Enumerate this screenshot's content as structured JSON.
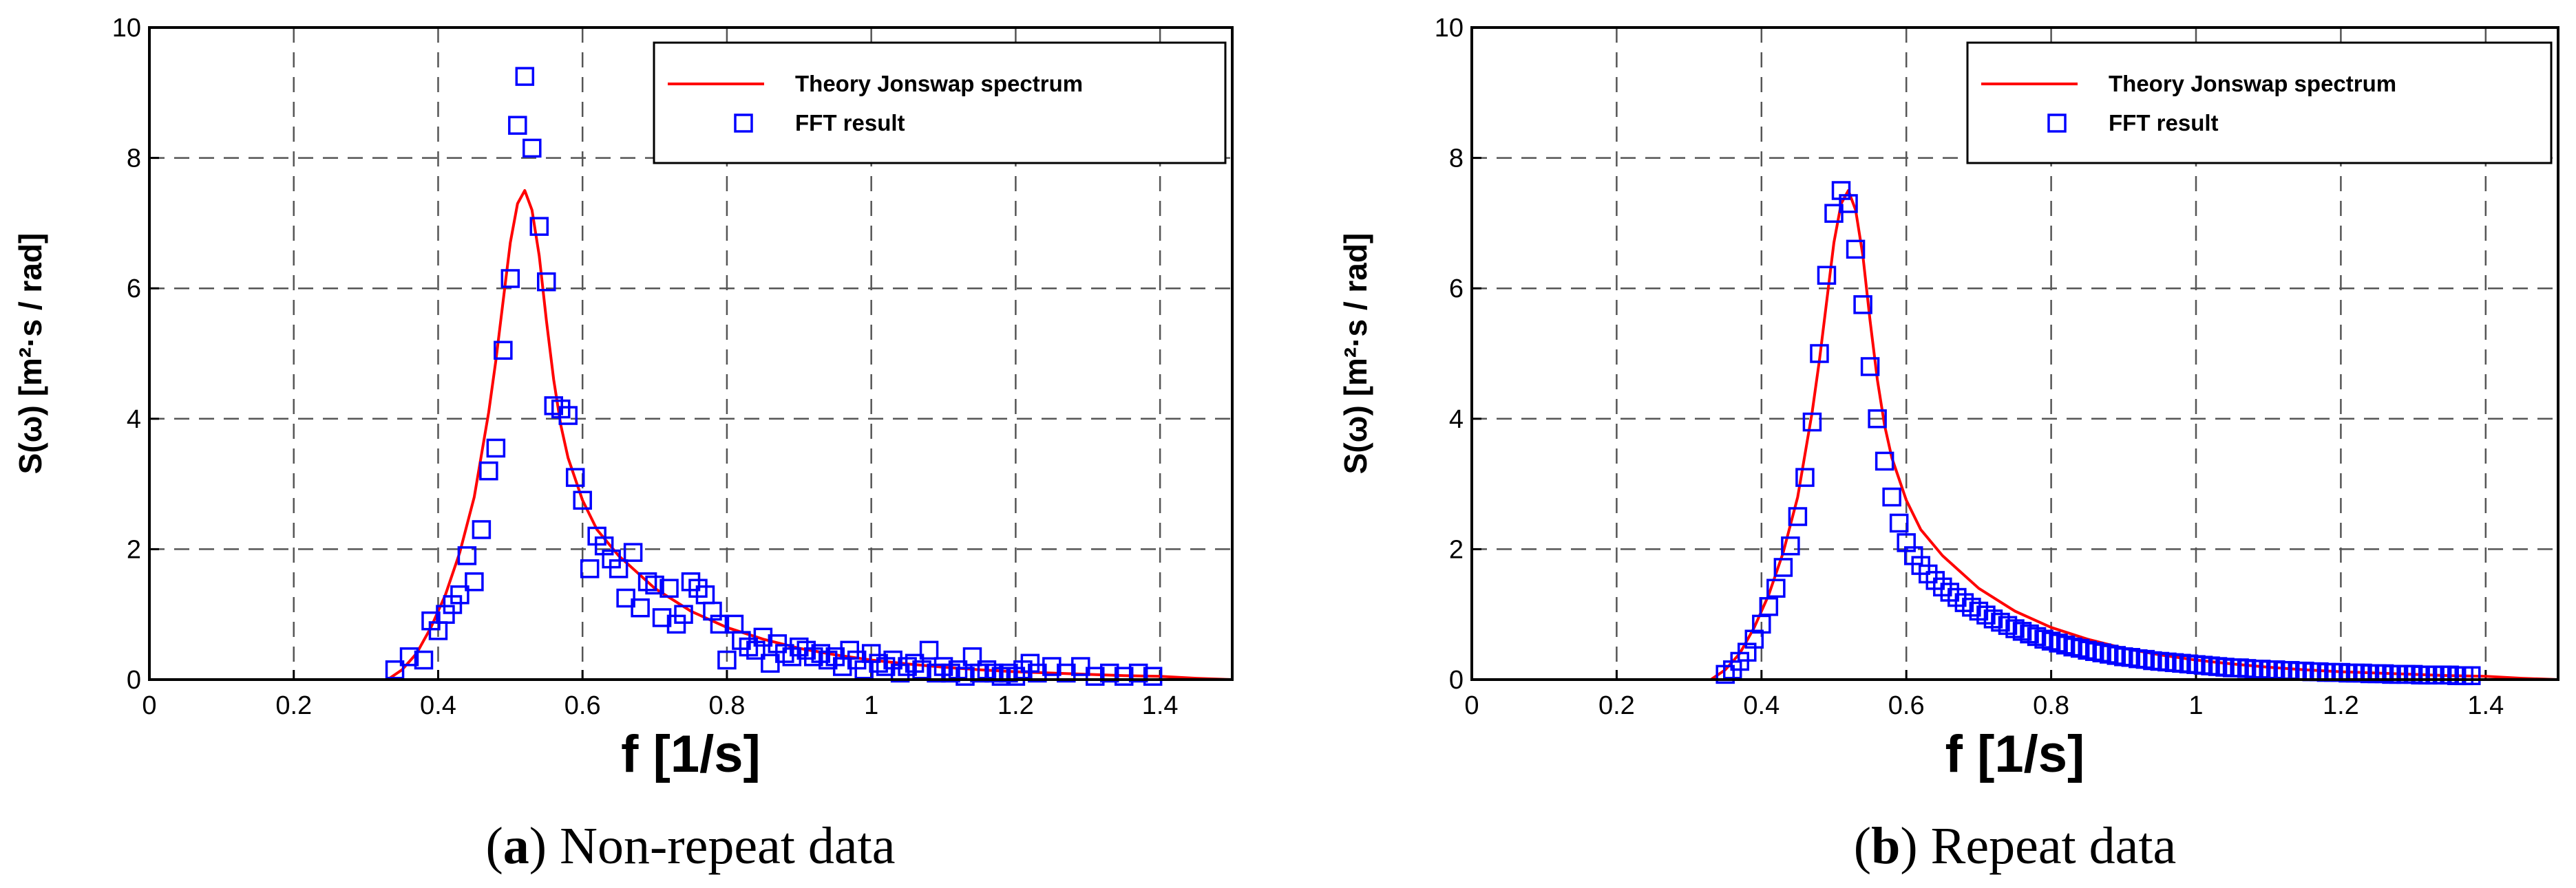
{
  "chart_data": [
    {
      "type": "line+scatter",
      "caption_letter": "a",
      "caption_text": " Non-repeat data",
      "xlabel": "f [1/s]",
      "ylabel": "S(ω) [m²·s / rad]",
      "xlim": [
        0,
        1.5
      ],
      "ylim": [
        0,
        10
      ],
      "xticks": [
        0,
        0.2,
        0.4,
        0.6,
        0.8,
        1,
        1.2,
        1.4
      ],
      "xtick_labels": [
        "0",
        "0.2",
        "0.4",
        "0.6",
        "0.8",
        "1",
        "1.2",
        "1.4"
      ],
      "yticks": [
        0,
        2,
        4,
        6,
        8,
        10
      ],
      "ytick_labels": [
        "0",
        "2",
        "4",
        "6",
        "8",
        "10"
      ],
      "grid": true,
      "legend_position": "top-right",
      "series": [
        {
          "name": "Theory Jonswap spectrum",
          "type": "line",
          "color": "#ff0000",
          "x": [
            0.33,
            0.35,
            0.37,
            0.39,
            0.41,
            0.43,
            0.45,
            0.47,
            0.48,
            0.49,
            0.5,
            0.51,
            0.52,
            0.53,
            0.54,
            0.55,
            0.56,
            0.57,
            0.58,
            0.6,
            0.62,
            0.65,
            0.7,
            0.75,
            0.8,
            0.85,
            0.9,
            0.95,
            1.0,
            1.05,
            1.1,
            1.15,
            1.2,
            1.25,
            1.3,
            1.35,
            1.4,
            1.45,
            1.5
          ],
          "y": [
            0.0,
            0.15,
            0.4,
            0.8,
            1.3,
            1.95,
            2.8,
            4.1,
            4.9,
            5.8,
            6.7,
            7.3,
            7.5,
            7.2,
            6.5,
            5.5,
            4.6,
            3.9,
            3.4,
            2.75,
            2.3,
            1.9,
            1.4,
            1.05,
            0.8,
            0.62,
            0.48,
            0.38,
            0.3,
            0.24,
            0.19,
            0.15,
            0.12,
            0.1,
            0.08,
            0.06,
            0.05,
            0.02,
            0.0
          ]
        },
        {
          "name": "FFT result",
          "type": "scatter",
          "color": "#0000ff",
          "x": [
            0.34,
            0.36,
            0.38,
            0.39,
            0.4,
            0.41,
            0.42,
            0.43,
            0.44,
            0.45,
            0.46,
            0.47,
            0.48,
            0.49,
            0.5,
            0.51,
            0.52,
            0.53,
            0.54,
            0.55,
            0.56,
            0.57,
            0.58,
            0.59,
            0.6,
            0.61,
            0.62,
            0.63,
            0.64,
            0.65,
            0.66,
            0.67,
            0.68,
            0.69,
            0.7,
            0.71,
            0.72,
            0.73,
            0.74,
            0.75,
            0.76,
            0.77,
            0.78,
            0.79,
            0.8,
            0.81,
            0.82,
            0.83,
            0.84,
            0.85,
            0.86,
            0.87,
            0.88,
            0.89,
            0.9,
            0.91,
            0.92,
            0.93,
            0.94,
            0.95,
            0.96,
            0.97,
            0.98,
            0.99,
            1.0,
            1.01,
            1.02,
            1.03,
            1.04,
            1.05,
            1.06,
            1.07,
            1.08,
            1.09,
            1.1,
            1.11,
            1.12,
            1.13,
            1.14,
            1.15,
            1.16,
            1.17,
            1.18,
            1.19,
            1.2,
            1.21,
            1.22,
            1.23,
            1.25,
            1.27,
            1.29,
            1.31,
            1.33,
            1.35,
            1.37,
            1.39
          ],
          "y": [
            0.15,
            0.35,
            0.3,
            0.9,
            0.75,
            1.0,
            1.15,
            1.3,
            1.9,
            1.5,
            2.3,
            3.2,
            3.55,
            5.05,
            6.15,
            8.5,
            9.25,
            8.15,
            6.95,
            6.1,
            4.2,
            4.15,
            4.05,
            3.1,
            2.75,
            1.7,
            2.2,
            2.05,
            1.85,
            1.7,
            1.25,
            1.95,
            1.1,
            1.5,
            1.45,
            0.95,
            1.4,
            0.85,
            1.0,
            1.5,
            1.4,
            1.3,
            1.05,
            0.85,
            0.3,
            0.85,
            0.6,
            0.5,
            0.45,
            0.65,
            0.25,
            0.55,
            0.4,
            0.35,
            0.5,
            0.45,
            0.35,
            0.4,
            0.3,
            0.35,
            0.2,
            0.45,
            0.3,
            0.15,
            0.4,
            0.25,
            0.2,
            0.3,
            0.1,
            0.2,
            0.25,
            0.15,
            0.45,
            0.1,
            0.2,
            0.1,
            0.15,
            0.05,
            0.35,
            0.1,
            0.15,
            0.1,
            0.05,
            0.1,
            0.05,
            0.15,
            0.25,
            0.1,
            0.2,
            0.1,
            0.2,
            0.05,
            0.1,
            0.05,
            0.1,
            0.05
          ]
        }
      ]
    },
    {
      "type": "line+scatter",
      "caption_letter": "b",
      "caption_text": " Repeat data",
      "xlabel": "f [1/s]",
      "ylabel": "S(ω) [m²·s / rad]",
      "xlim": [
        0,
        1.5
      ],
      "ylim": [
        0,
        10
      ],
      "xticks": [
        0,
        0.2,
        0.4,
        0.6,
        0.8,
        1,
        1.2,
        1.4
      ],
      "xtick_labels": [
        "0",
        "0.2",
        "0.4",
        "0.6",
        "0.8",
        "1",
        "1.2",
        "1.4"
      ],
      "yticks": [
        0,
        2,
        4,
        6,
        8,
        10
      ],
      "ytick_labels": [
        "0",
        "2",
        "4",
        "6",
        "8",
        "10"
      ],
      "grid": true,
      "legend_position": "top-right",
      "series": [
        {
          "name": "Theory Jonswap spectrum",
          "type": "line",
          "color": "#ff0000",
          "x": [
            0.33,
            0.35,
            0.37,
            0.39,
            0.41,
            0.43,
            0.45,
            0.47,
            0.48,
            0.49,
            0.5,
            0.51,
            0.52,
            0.53,
            0.54,
            0.55,
            0.56,
            0.57,
            0.58,
            0.6,
            0.62,
            0.65,
            0.7,
            0.75,
            0.8,
            0.85,
            0.9,
            0.95,
            1.0,
            1.05,
            1.1,
            1.15,
            1.2,
            1.25,
            1.3,
            1.35,
            1.4,
            1.45,
            1.5
          ],
          "y": [
            0.0,
            0.15,
            0.4,
            0.8,
            1.3,
            1.95,
            2.8,
            4.1,
            4.9,
            5.8,
            6.7,
            7.3,
            7.5,
            7.2,
            6.5,
            5.5,
            4.6,
            3.9,
            3.4,
            2.75,
            2.3,
            1.9,
            1.4,
            1.05,
            0.8,
            0.62,
            0.48,
            0.38,
            0.3,
            0.24,
            0.19,
            0.15,
            0.12,
            0.1,
            0.08,
            0.06,
            0.05,
            0.02,
            0.0
          ]
        },
        {
          "name": "FFT result",
          "type": "scatter",
          "color": "#0000ff",
          "x": [
            0.35,
            0.36,
            0.37,
            0.38,
            0.39,
            0.4,
            0.41,
            0.42,
            0.43,
            0.44,
            0.45,
            0.46,
            0.47,
            0.48,
            0.49,
            0.5,
            0.51,
            0.52,
            0.53,
            0.54,
            0.55,
            0.56,
            0.57,
            0.58,
            0.59,
            0.6,
            0.61,
            0.62,
            0.63,
            0.64,
            0.65,
            0.66,
            0.67,
            0.68,
            0.69,
            0.7,
            0.71,
            0.72,
            0.73,
            0.74,
            0.75,
            0.76,
            0.77,
            0.78,
            0.79,
            0.8,
            0.81,
            0.82,
            0.83,
            0.84,
            0.85,
            0.86,
            0.87,
            0.88,
            0.89,
            0.9,
            0.91,
            0.92,
            0.93,
            0.94,
            0.95,
            0.96,
            0.97,
            0.98,
            0.99,
            1.0,
            1.01,
            1.02,
            1.03,
            1.04,
            1.05,
            1.06,
            1.07,
            1.08,
            1.09,
            1.1,
            1.11,
            1.12,
            1.13,
            1.14,
            1.15,
            1.16,
            1.17,
            1.18,
            1.19,
            1.2,
            1.21,
            1.22,
            1.23,
            1.24,
            1.25,
            1.26,
            1.27,
            1.28,
            1.29,
            1.3,
            1.31,
            1.32,
            1.33,
            1.34,
            1.35,
            1.36,
            1.37,
            1.38
          ],
          "y": [
            0.08,
            0.15,
            0.28,
            0.42,
            0.62,
            0.85,
            1.12,
            1.4,
            1.72,
            2.05,
            2.5,
            3.1,
            3.95,
            5.0,
            6.2,
            7.15,
            7.5,
            7.3,
            6.6,
            5.75,
            4.8,
            4.0,
            3.35,
            2.8,
            2.4,
            2.1,
            1.9,
            1.75,
            1.62,
            1.52,
            1.42,
            1.34,
            1.26,
            1.18,
            1.11,
            1.05,
            0.99,
            0.93,
            0.88,
            0.83,
            0.78,
            0.74,
            0.7,
            0.66,
            0.62,
            0.59,
            0.56,
            0.53,
            0.5,
            0.48,
            0.45,
            0.43,
            0.41,
            0.39,
            0.37,
            0.35,
            0.34,
            0.32,
            0.31,
            0.29,
            0.28,
            0.27,
            0.26,
            0.25,
            0.24,
            0.23,
            0.22,
            0.21,
            0.2,
            0.19,
            0.18,
            0.18,
            0.17,
            0.16,
            0.16,
            0.15,
            0.15,
            0.14,
            0.14,
            0.13,
            0.13,
            0.12,
            0.12,
            0.11,
            0.11,
            0.11,
            0.1,
            0.1,
            0.1,
            0.09,
            0.09,
            0.09,
            0.08,
            0.08,
            0.08,
            0.08,
            0.07,
            0.07,
            0.07,
            0.07,
            0.07,
            0.06,
            0.06,
            0.06
          ]
        }
      ]
    }
  ]
}
